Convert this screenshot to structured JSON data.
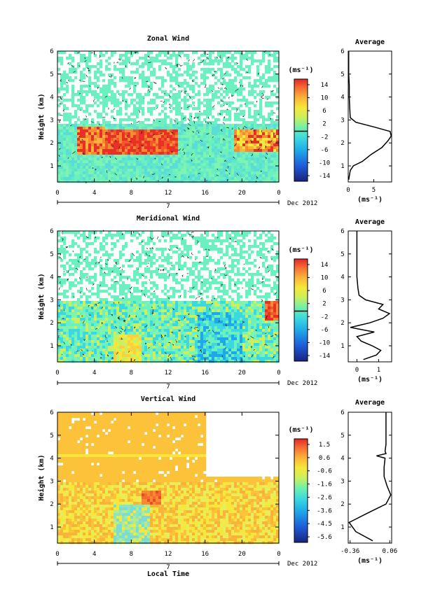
{
  "chart_data": [
    {
      "type": "heatmap",
      "title": "Zonal Wind",
      "ylabel": "Height (km)",
      "x_ticks": [
        "0",
        "4",
        "8",
        "12",
        "16",
        "20",
        "0"
      ],
      "y_ticks": [
        "1",
        "2",
        "3",
        "4",
        "5",
        "6"
      ],
      "date_label": "7",
      "date_suffix": "Dec 2012",
      "colorbar": {
        "unit": "(ms⁻¹)",
        "ticks": [
          "14",
          "10",
          "6",
          "2",
          "-2",
          "-6",
          "-10",
          "-14"
        ]
      },
      "profile": {
        "title": "Average",
        "x_ticks": [
          "0",
          "5"
        ],
        "xlabel": "(ms⁻¹)",
        "xlim": [
          0,
          8.5
        ],
        "height": [
          0.4,
          0.8,
          1.0,
          1.2,
          1.5,
          1.8,
          2.1,
          2.3,
          2.5,
          2.7,
          2.9,
          3.1,
          3.5,
          4,
          4.5,
          5,
          5.5,
          6
        ],
        "value": [
          0.1,
          0.4,
          1.0,
          2.8,
          4.5,
          6.6,
          7.8,
          8.4,
          8.2,
          5.0,
          1.5,
          0.4,
          0.3,
          0.2,
          0.2,
          0.1,
          0.1,
          0.1
        ]
      }
    },
    {
      "type": "heatmap",
      "title": "Meridional Wind",
      "ylabel": "Height (km)",
      "x_ticks": [
        "0",
        "4",
        "8",
        "12",
        "16",
        "20",
        "0"
      ],
      "y_ticks": [
        "1",
        "2",
        "3",
        "4",
        "5",
        "6"
      ],
      "date_label": "7",
      "date_suffix": "Dec 2012",
      "colorbar": {
        "unit": "(ms⁻¹)",
        "ticks": [
          "14",
          "10",
          "6",
          "2",
          "-2",
          "-6",
          "-10",
          "-14"
        ]
      },
      "profile": {
        "title": "Average",
        "x_ticks": [
          "0",
          "1"
        ],
        "xlabel": "(ms⁻¹)",
        "xlim": [
          -0.4,
          1.6
        ],
        "height": [
          0.4,
          0.6,
          0.8,
          1.0,
          1.2,
          1.4,
          1.6,
          1.8,
          2.0,
          2.2,
          2.4,
          2.6,
          2.8,
          3.0,
          3.2,
          3.5,
          4,
          4.5,
          5,
          5.5,
          6
        ],
        "value": [
          0.3,
          0.9,
          1.1,
          0.7,
          0.2,
          0.0,
          0.8,
          -0.3,
          0.6,
          1.2,
          1.5,
          1.0,
          1.2,
          0.4,
          0.1,
          0.05,
          0.0,
          0.0,
          0.0,
          0.0,
          0.0
        ]
      }
    },
    {
      "type": "heatmap",
      "title": "Vertical Wind",
      "ylabel": "Height (km)",
      "xlabel": "Local Time",
      "x_ticks": [
        "0",
        "4",
        "8",
        "12",
        "16",
        "20",
        "0"
      ],
      "y_ticks": [
        "1",
        "2",
        "3",
        "4",
        "5",
        "6"
      ],
      "date_label": "7",
      "date_suffix": "Dec 2012",
      "colorbar": {
        "unit": "(ms⁻¹)",
        "ticks": [
          "1.5",
          "0.6",
          "-0.6",
          "-1.6",
          "-2.6",
          "-3.6",
          "-4.5",
          "-5.6"
        ]
      },
      "profile": {
        "title": "Average",
        "x_ticks": [
          "-0.36",
          "0.06"
        ],
        "xlabel": "(ms⁻¹)",
        "xlim": [
          -0.38,
          0.08
        ],
        "height": [
          0.4,
          0.8,
          1.2,
          1.6,
          2.0,
          2.4,
          2.8,
          3.2,
          3.6,
          4.0,
          4.1,
          4.2,
          4.3,
          4.6,
          5.0,
          5.5,
          6
        ],
        "value": [
          -0.12,
          -0.3,
          -0.37,
          -0.18,
          0.02,
          0.07,
          0.03,
          0.0,
          0.0,
          0.01,
          -0.08,
          0.02,
          0.01,
          0.02,
          0.02,
          0.02,
          0.02
        ]
      }
    }
  ]
}
